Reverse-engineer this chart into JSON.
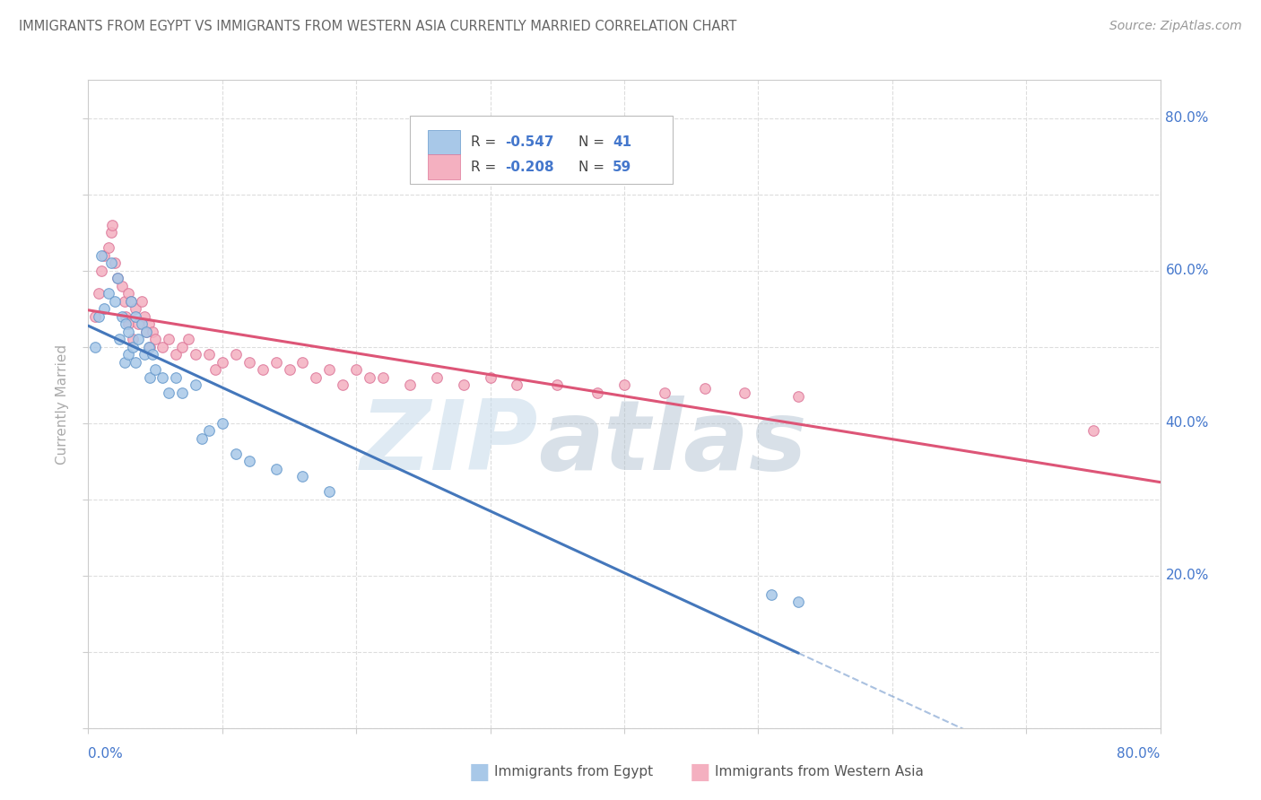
{
  "title": "IMMIGRANTS FROM EGYPT VS IMMIGRANTS FROM WESTERN ASIA CURRENTLY MARRIED CORRELATION CHART",
  "source": "Source: ZipAtlas.com",
  "ylabel": "Currently Married",
  "egypt_color": "#a8c8e8",
  "western_asia_color": "#f4b0c0",
  "egypt_edge_color": "#6699cc",
  "western_asia_edge_color": "#dd7799",
  "egypt_line_color": "#4477bb",
  "western_asia_line_color": "#dd5577",
  "axis_color": "#4477cc",
  "title_color": "#666666",
  "source_color": "#999999",
  "grid_color": "#dddddd",
  "bg_color": "#ffffff",
  "xlim": [
    0.0,
    0.8
  ],
  "ylim": [
    0.0,
    0.85
  ],
  "egypt_R": -0.547,
  "egypt_N": 41,
  "wa_R": -0.208,
  "wa_N": 59,
  "egypt_x": [
    0.005,
    0.008,
    0.01,
    0.012,
    0.015,
    0.017,
    0.02,
    0.022,
    0.023,
    0.025,
    0.027,
    0.028,
    0.03,
    0.03,
    0.032,
    0.033,
    0.035,
    0.035,
    0.037,
    0.04,
    0.042,
    0.043,
    0.045,
    0.046,
    0.048,
    0.05,
    0.055,
    0.06,
    0.065,
    0.07,
    0.08,
    0.085,
    0.09,
    0.1,
    0.11,
    0.12,
    0.14,
    0.16,
    0.18,
    0.51,
    0.53
  ],
  "egypt_y": [
    0.5,
    0.54,
    0.62,
    0.55,
    0.57,
    0.61,
    0.56,
    0.59,
    0.51,
    0.54,
    0.48,
    0.53,
    0.52,
    0.49,
    0.56,
    0.5,
    0.54,
    0.48,
    0.51,
    0.53,
    0.49,
    0.52,
    0.5,
    0.46,
    0.49,
    0.47,
    0.46,
    0.44,
    0.46,
    0.44,
    0.45,
    0.38,
    0.39,
    0.4,
    0.36,
    0.35,
    0.34,
    0.33,
    0.31,
    0.175,
    0.165
  ],
  "wa_x": [
    0.005,
    0.008,
    0.01,
    0.012,
    0.015,
    0.017,
    0.018,
    0.02,
    0.022,
    0.025,
    0.027,
    0.028,
    0.03,
    0.03,
    0.032,
    0.033,
    0.035,
    0.037,
    0.04,
    0.042,
    0.043,
    0.045,
    0.046,
    0.048,
    0.05,
    0.055,
    0.06,
    0.065,
    0.07,
    0.075,
    0.08,
    0.09,
    0.095,
    0.1,
    0.11,
    0.12,
    0.13,
    0.14,
    0.15,
    0.16,
    0.17,
    0.18,
    0.19,
    0.2,
    0.21,
    0.22,
    0.24,
    0.26,
    0.28,
    0.3,
    0.32,
    0.35,
    0.38,
    0.4,
    0.43,
    0.46,
    0.49,
    0.53,
    0.75
  ],
  "wa_y": [
    0.54,
    0.57,
    0.6,
    0.62,
    0.63,
    0.65,
    0.66,
    0.61,
    0.59,
    0.58,
    0.56,
    0.54,
    0.57,
    0.53,
    0.56,
    0.51,
    0.55,
    0.53,
    0.56,
    0.54,
    0.52,
    0.53,
    0.5,
    0.52,
    0.51,
    0.5,
    0.51,
    0.49,
    0.5,
    0.51,
    0.49,
    0.49,
    0.47,
    0.48,
    0.49,
    0.48,
    0.47,
    0.48,
    0.47,
    0.48,
    0.46,
    0.47,
    0.45,
    0.47,
    0.46,
    0.46,
    0.45,
    0.46,
    0.45,
    0.46,
    0.45,
    0.45,
    0.44,
    0.45,
    0.44,
    0.445,
    0.44,
    0.435,
    0.39
  ]
}
